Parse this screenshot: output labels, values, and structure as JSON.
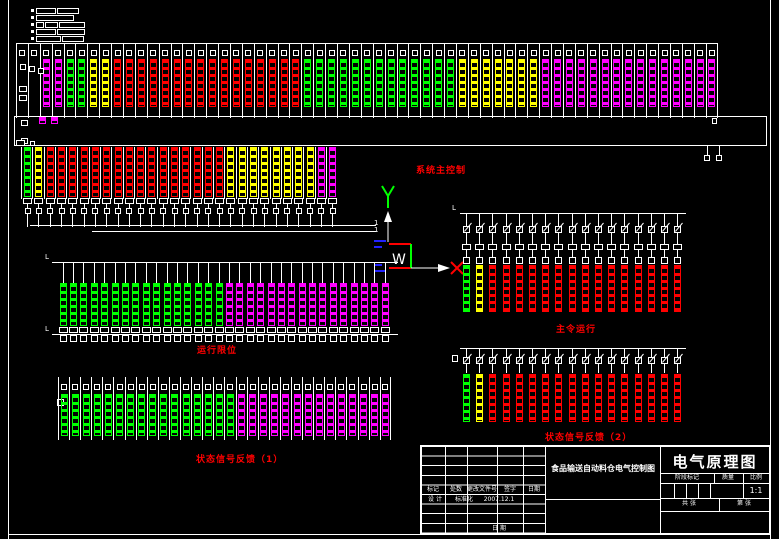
{
  "labels": {
    "system_main_control": "系统主控制",
    "run_limit": "运行限位",
    "feedback_1": "状态信号反馈（1）",
    "master_run": "主令运行",
    "feedback_2": "状态信号反馈（2）",
    "wire_one": "1",
    "wire_l": "L",
    "ucs_w": "W"
  },
  "colors": {
    "background": "#000000",
    "line": "#FFFFFF",
    "label": "#FF0000",
    "axis_y": "#00FF00",
    "axis_x_cross": "#FF0000",
    "ucs_blue": "#2222FF"
  },
  "color_map": {
    "r": "#FF0000",
    "g": "#00FF00",
    "y": "#FFFF00",
    "m": "#FF00FF"
  },
  "ladders": {
    "top_row": {
      "parts": [
        "sq",
        "bar"
      ],
      "colors": "xxmmggyyrrrrrrrrrrrrrrrrgggggggggggggyyyyyyymmmmmmmmmmmmmmm"
    },
    "row2": {
      "parts": [
        "bar",
        "rect",
        "stub",
        "sq",
        "stub2"
      ],
      "colors": "gyrrrrrrrrrrrrrrrryyyyyyyymm"
    },
    "run_limit": {
      "parts": [
        "stub",
        "bar",
        "rect",
        "sq"
      ],
      "colors": "ggggggggggggggggmmmmmmmmmmmmmmmm"
    },
    "feedback1": {
      "parts": [
        "sq",
        "bar"
      ],
      "colors": "ggggggggggggggggmmmmmmmmmmmmmm"
    },
    "master_run": {
      "parts": [
        "stub",
        "sq",
        "slash",
        "stub2",
        "rect",
        "stub3",
        "sq",
        "bar"
      ],
      "colors": "gyrrrrrrrrrrrrrrr"
    },
    "feedback2": {
      "parts": [
        "stub",
        "sq",
        "slash",
        "stub2",
        "bar"
      ],
      "colors": "gyrrrrrrrrrrrrrrr"
    }
  },
  "title_block": {
    "drawing_title": "电气原理图",
    "project_name": "食品输送自动料仓电气控制图",
    "col_mark": "标记",
    "col_count": "处数",
    "col_doc": "更改文件号",
    "col_sign": "签字",
    "col_date": "日期",
    "design": "设 计",
    "standardization": "标准化",
    "date": "2007.12.1",
    "bottom_cell": "日 期",
    "stage_mark": "阶段标记",
    "mass": "质量",
    "scale": "比例",
    "scale_value": "1:1",
    "sheet_total": "共  张",
    "sheet_index": "第  张"
  }
}
